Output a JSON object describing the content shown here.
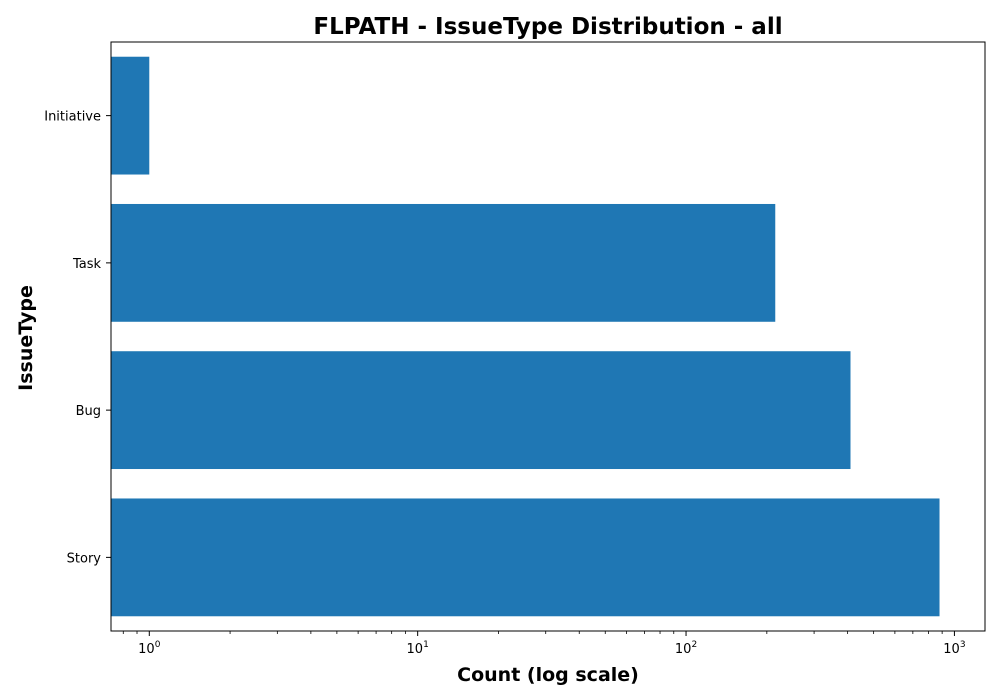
{
  "chart_data": {
    "type": "bar",
    "orientation": "horizontal",
    "title": "FLPATH - IssueType Distribution - all",
    "xlabel": "Count (log scale)",
    "ylabel": "IssueType",
    "x_scale": "log",
    "xlim": [
      0.72,
      1300
    ],
    "x_ticks": [
      {
        "base": "10",
        "exp": "0",
        "value": 1
      },
      {
        "base": "10",
        "exp": "1",
        "value": 10
      },
      {
        "base": "10",
        "exp": "2",
        "value": 100
      },
      {
        "base": "10",
        "exp": "3",
        "value": 1000
      }
    ],
    "categories": [
      "Story",
      "Bug",
      "Task",
      "Initiative"
    ],
    "values": [
      880,
      410,
      215,
      1
    ],
    "bar_color": "#1f77b4",
    "grid": false,
    "legend": "none"
  }
}
